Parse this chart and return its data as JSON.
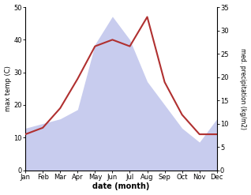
{
  "months": [
    "Jan",
    "Feb",
    "Mar",
    "Apr",
    "May",
    "Jun",
    "Jul",
    "Aug",
    "Sep",
    "Oct",
    "Nov",
    "Dec"
  ],
  "temperature": [
    11,
    13,
    19,
    28,
    38,
    40,
    38,
    47,
    27,
    17,
    11,
    11
  ],
  "precipitation": [
    9,
    10,
    11,
    13,
    27,
    33,
    28,
    19,
    14,
    9,
    6,
    11
  ],
  "temp_color": "#b03030",
  "precip_color_fill": "#c8ccee",
  "temp_ylim": [
    0,
    50
  ],
  "precip_ylim": [
    0,
    35
  ],
  "temp_yticks": [
    0,
    10,
    20,
    30,
    40,
    50
  ],
  "precip_yticks": [
    0,
    5,
    10,
    15,
    20,
    25,
    30,
    35
  ],
  "xlabel": "date (month)",
  "ylabel_left": "max temp (C)",
  "ylabel_right": "med. precipitation (kg/m2)",
  "bg_color": "#ffffff"
}
